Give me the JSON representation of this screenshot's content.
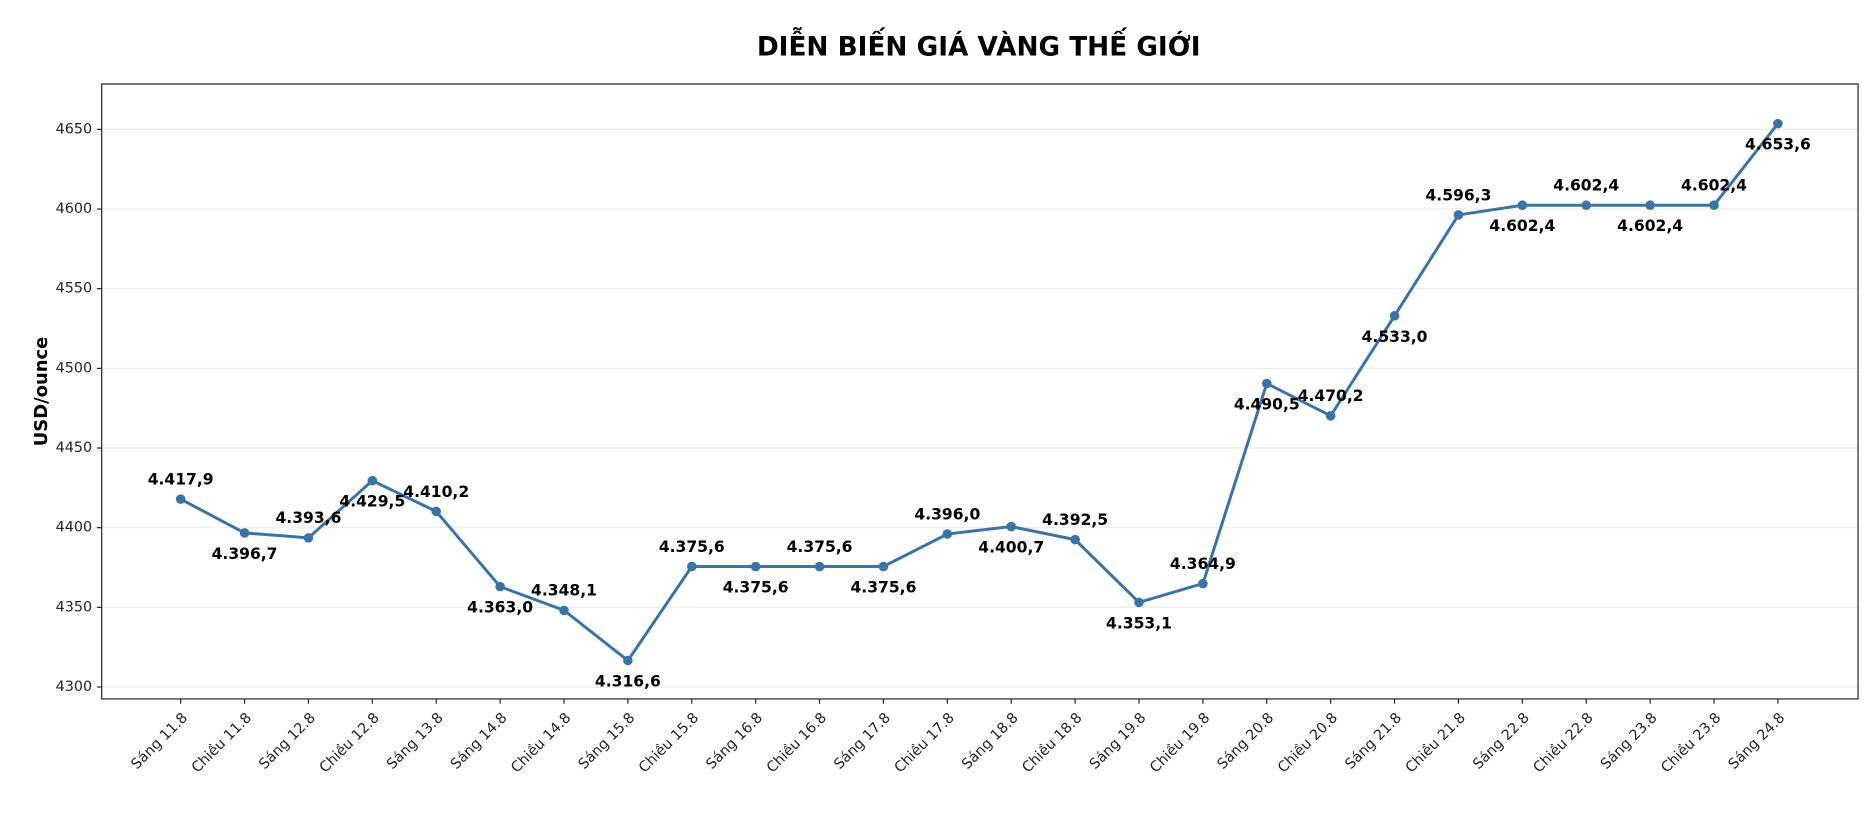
{
  "chart_data": {
    "type": "line",
    "title": "DIỄN BIẾN GIÁ VÀNG THẾ GIỚI",
    "y_label": "USD/ounce",
    "categories": [
      "Sáng 11.8",
      "Chiều 11.8",
      "Sáng 12.8",
      "Chiều 12.8",
      "Sáng 13.8",
      "Sáng 14.8",
      "Chiều 14.8",
      "Sáng 15.8",
      "Chiều 15.8",
      "Sáng 16.8",
      "Chiều 16.8",
      "Sáng 17.8",
      "Chiều 17.8",
      "Sáng 18.8",
      "Chiều 18.8",
      "Sáng 19.8",
      "Chiều 19.8",
      "Sáng 20.8",
      "Chiều 20.8",
      "Sáng 21.8",
      "Chiều 21.8",
      "Sáng 22.8",
      "Chiều 22.8",
      "Sáng 23.8",
      "Chiều 23.8",
      "Sáng 24.8"
    ],
    "series": [
      {
        "name": "USD/ounce",
        "color": "#3a73a8",
        "values": [
          4417.9,
          4396.7,
          4393.6,
          4429.5,
          4410.2,
          4363.0,
          4348.1,
          4316.6,
          4375.6,
          4375.6,
          4375.6,
          4375.6,
          4396.0,
          4400.7,
          4392.5,
          4353.1,
          4364.9,
          4490.5,
          4470.2,
          4533.0,
          4596.3,
          4602.4,
          4602.4,
          4602.4,
          4602.4,
          4653.6
        ],
        "value_labels": [
          "4.417,9",
          "4.396,7",
          "4.393,6",
          "4.429,5",
          "4.410,2",
          "4.363,0",
          "4.348,1",
          "4.316,6",
          "4.375,6",
          "4.375,6",
          "4.375,6",
          "4.375,6",
          "4.396,0",
          "4.400,7",
          "4.392,5",
          "4.353,1",
          "4.364,9",
          "4.490,5",
          "4.470,2",
          "4.533,0",
          "4.596,3",
          "4.602,4",
          "4.602,4",
          "4.602,4",
          "4.602,4",
          "4.653,6"
        ]
      }
    ],
    "ylim": [
      4292.5,
      4678.5
    ],
    "yticks": [
      4300,
      4350,
      4400,
      4450,
      4500,
      4550,
      4600,
      4650
    ],
    "grid": true
  }
}
